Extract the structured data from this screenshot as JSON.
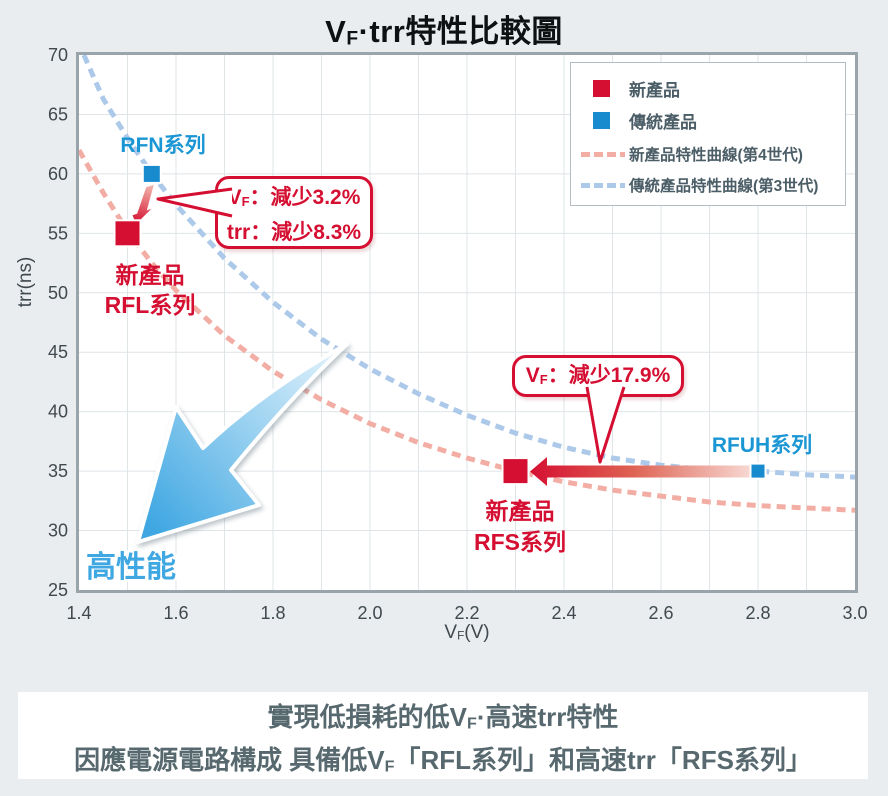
{
  "title": {
    "pre": "V",
    "sub": "F",
    "post": "·trr特性比較圖"
  },
  "chart_data": {
    "type": "scatter",
    "title": "VF·trr特性比較圖",
    "xlabel": {
      "pre": "V",
      "sub": "F",
      "post": "(V)"
    },
    "ylabel": "trr(ns)",
    "xlim": [
      1.4,
      3.0
    ],
    "ylim": [
      25,
      70
    ],
    "x_ticks": [
      "1.4",
      "1.6",
      "1.8",
      "2.0",
      "2.2",
      "2.4",
      "2.6",
      "2.8",
      "3.0"
    ],
    "y_ticks": [
      "70",
      "65",
      "60",
      "55",
      "50",
      "45",
      "40",
      "35",
      "30",
      "25"
    ],
    "x_grid_step": 0.1,
    "y_grid_step": 5,
    "grid": true,
    "legend_position": "top-right",
    "points": [
      {
        "id": "rfn",
        "label": "RFN系列",
        "series": "傳統產品",
        "x": 1.55,
        "y": 60,
        "size": 18,
        "color": "#178bcd"
      },
      {
        "id": "rfl",
        "label": "新產品 RFL系列",
        "series": "新產品",
        "x": 1.5,
        "y": 55,
        "size": 26,
        "color": "#d50f31"
      },
      {
        "id": "rfs",
        "label": "新產品 RFS系列",
        "series": "新產品",
        "x": 2.3,
        "y": 35,
        "size": 26,
        "color": "#d50f31"
      },
      {
        "id": "rfuh",
        "label": "RFUH系列",
        "series": "傳統產品",
        "x": 2.8,
        "y": 35,
        "size": 15,
        "color": "#178bcd"
      }
    ],
    "curves": [
      {
        "name": "新產品特性曲線(第4世代)",
        "color": "#f2aea4",
        "points": [
          [
            1.4,
            62
          ],
          [
            1.45,
            58.4
          ],
          [
            1.5,
            55.2
          ],
          [
            1.55,
            52.5
          ],
          [
            1.6,
            50.2
          ],
          [
            1.7,
            46.4
          ],
          [
            1.8,
            43.4
          ],
          [
            1.9,
            41.0
          ],
          [
            2.0,
            39.0
          ],
          [
            2.1,
            37.4
          ],
          [
            2.2,
            36.1
          ],
          [
            2.3,
            35.0
          ],
          [
            2.4,
            34.1
          ],
          [
            2.5,
            33.4
          ],
          [
            2.6,
            32.9
          ],
          [
            2.7,
            32.4
          ],
          [
            2.8,
            32.1
          ],
          [
            2.9,
            31.9
          ],
          [
            3.0,
            31.7
          ]
        ]
      },
      {
        "name": "傳統產品特性曲線(第3世代)",
        "color": "#adc9e9",
        "points": [
          [
            1.41,
            70
          ],
          [
            1.45,
            66.3
          ],
          [
            1.5,
            63.0
          ],
          [
            1.55,
            60.0
          ],
          [
            1.6,
            57.4
          ],
          [
            1.7,
            52.9
          ],
          [
            1.8,
            49.2
          ],
          [
            1.9,
            46.1
          ],
          [
            2.0,
            43.6
          ],
          [
            2.1,
            41.5
          ],
          [
            2.2,
            39.7
          ],
          [
            2.3,
            38.2
          ],
          [
            2.4,
            37.0
          ],
          [
            2.5,
            36.1
          ],
          [
            2.6,
            35.5
          ],
          [
            2.7,
            35.1
          ],
          [
            2.8,
            35.0
          ],
          [
            2.9,
            34.7
          ],
          [
            3.0,
            34.5
          ]
        ]
      }
    ]
  },
  "legend": {
    "items": [
      {
        "label": "新產品",
        "swatch": "red-square"
      },
      {
        "label": "傳統產品",
        "swatch": "blue-square"
      },
      {
        "label": "新產品特性曲線(第4世代)",
        "swatch": "pink-dash"
      },
      {
        "label": "傳統產品特性曲線(第3世代)",
        "swatch": "blue-dash"
      }
    ]
  },
  "plot_labels": {
    "rfn": "RFN系列",
    "rfl_line1": "新產品",
    "rfl_line2": "RFL系列",
    "rfs_line1": "新產品",
    "rfs_line2": "RFS系列",
    "rfuh": "RFUH系列",
    "performance": "高性能"
  },
  "callouts": {
    "vf_trr": {
      "line1_pre": "V",
      "line1_sub": "F",
      "line1_post": "：減少3.2%",
      "line2": "trr：減少8.3%"
    },
    "vf_only": {
      "pre": "V",
      "sub": "F",
      "post": "：減少17.9%"
    }
  },
  "summary": {
    "line1_pre": "實現低損耗的低V",
    "line1_sub": "F",
    "line1_post": "·高速trr特性",
    "line2_pre": "因應電源電路構成 具備低V",
    "line2_sub": "F",
    "line2_post": "「RFL系列」和高速trr「RFS系列」"
  },
  "colors": {
    "new_product_red": "#d50f31",
    "traditional_blue": "#178bcd",
    "new_curve_pink": "#f2aea4",
    "traditional_curve_blue": "#adc9e9",
    "performance_blue": "#3fa7e2",
    "summary_text": "#57696f",
    "grid": "#dfe4e7",
    "plot_border": "#9aa4ab"
  }
}
